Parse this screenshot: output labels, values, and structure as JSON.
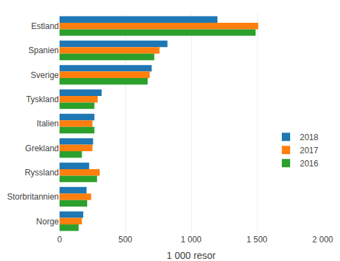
{
  "chart_data": {
    "type": "bar",
    "orientation": "horizontal",
    "categories": [
      "Estland",
      "Spanien",
      "Sverige",
      "Tyskland",
      "Italien",
      "Grekland",
      "Ryssland",
      "Storbritannien",
      "Norge"
    ],
    "series": [
      {
        "name": "2018",
        "values": [
          1200,
          820,
          700,
          320,
          265,
          255,
          225,
          205,
          180
        ]
      },
      {
        "name": "2017",
        "values": [
          1510,
          760,
          685,
          290,
          250,
          250,
          305,
          240,
          170
        ]
      },
      {
        "name": "2016",
        "values": [
          1490,
          720,
          670,
          265,
          265,
          170,
          285,
          210,
          145
        ]
      }
    ],
    "xlabel": "1 000 resor",
    "xlim": [
      0,
      2000
    ],
    "xticks": [
      0,
      500,
      {
        "value": 1000,
        "label": "1 000"
      },
      {
        "value": 1500,
        "label": "1 500"
      },
      {
        "value": 2000,
        "label": "2 000"
      }
    ],
    "grid": true,
    "legend": "right"
  }
}
